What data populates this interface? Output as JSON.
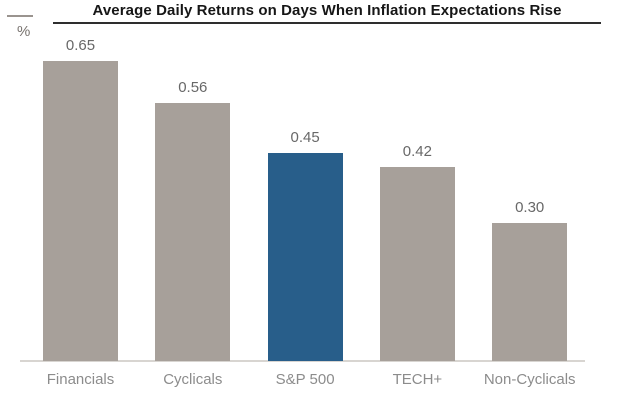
{
  "title": "Average Daily Returns on Days When Inflation Expectations Rise",
  "y_axis_unit": "%",
  "chart_data": {
    "type": "bar",
    "title": "Average Daily Returns on Days When Inflation Expectations Rise",
    "categories": [
      "Financials",
      "Cyclicals",
      "S&P 500",
      "TECH+",
      "Non-Cyclicals"
    ],
    "values": [
      0.65,
      0.56,
      0.45,
      0.42,
      0.3
    ],
    "value_labels": [
      "0.65",
      "0.56",
      "0.45",
      "0.42",
      "0.30"
    ],
    "xlabel": "",
    "ylabel": "%",
    "ylim": [
      0,
      0.7
    ],
    "grid": false,
    "legend": "none",
    "data_labels_shown": true,
    "highlight_index": 2,
    "highlight_category": "S&P 500",
    "colors": {
      "bar_default": "#a7a09a",
      "bar_highlight": "#285e8a",
      "value_label": "#686868",
      "category_label": "#8c8c8c",
      "title_text": "#161616",
      "baseline": "#d8d5d1"
    }
  }
}
